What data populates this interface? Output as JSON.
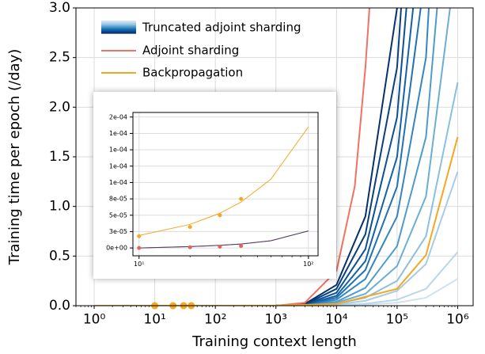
{
  "chart_data": [
    {
      "type": "line",
      "xlabel": "Training context length",
      "ylabel": "Training time per epoch (/day)",
      "xscale": "log",
      "xlim": [
        0.5,
        1800000
      ],
      "ylim": [
        0,
        3
      ],
      "grid": true,
      "legend": "upper left",
      "xticks": [
        {
          "value": 1,
          "label": "10⁰"
        },
        {
          "value": 10,
          "label": "10¹"
        },
        {
          "value": 100,
          "label": "10²"
        },
        {
          "value": 1000,
          "label": "10³"
        },
        {
          "value": 10000,
          "label": "10⁴"
        },
        {
          "value": 100000,
          "label": "10⁵"
        },
        {
          "value": 1000000,
          "label": "10⁶"
        }
      ],
      "yticks": [
        {
          "value": 0,
          "label": "0.0"
        },
        0.5,
        {
          "value": 1,
          "label": "1.0"
        },
        1.5,
        {
          "value": 2,
          "label": "2.0"
        },
        2.5,
        {
          "value": 3,
          "label": "3.0"
        }
      ],
      "truncated": {
        "name": "Truncated adjoint sharding",
        "x": [
          1000,
          3000,
          10000,
          30000,
          100000,
          300000,
          1000000
        ],
        "curves": [
          {
            "color": "#08306b",
            "values": [
              0.0009,
              0.018,
              0.21,
              0.9,
              3,
              8.4,
              27
            ]
          },
          {
            "color": "#08407e",
            "values": [
              0.0007,
              0.014,
              0.17,
              0.72,
              2.4,
              6.7,
              21.6
            ]
          },
          {
            "color": "#0b5094",
            "values": [
              0.0006,
              0.011,
              0.13,
              0.57,
              1.9,
              5.3,
              17.1
            ]
          },
          {
            "color": "#1361a9",
            "values": [
              0.0005,
              0.009,
              0.1,
              0.45,
              1.5,
              4.2,
              13.5
            ]
          },
          {
            "color": "#2171b5",
            "values": [
              0.0004,
              0.007,
              0.08,
              0.36,
              1.2,
              3.4,
              10.8
            ]
          },
          {
            "color": "#3585c0",
            "values": [
              0.0003,
              0.005,
              0.06,
              0.27,
              0.9,
              2.5,
              8.1
            ]
          },
          {
            "color": "#4f9bcb",
            "values": [
              0.0002,
              0.004,
              0.04,
              0.18,
              0.6,
              1.7,
              5.4
            ]
          },
          {
            "color": "#6aaed6",
            "values": [
              0.0001,
              0.002,
              0.03,
              0.12,
              0.4,
              1.1,
              3.6
            ]
          },
          {
            "color": "#8bbfdf",
            "values": [
              0.0001,
              0.0015,
              0.02,
              0.08,
              0.25,
              0.7,
              2.25
            ]
          },
          {
            "color": "#a5cde3",
            "values": [
              5e-05,
              0.001,
              0.01,
              0.05,
              0.15,
              0.42,
              1.35
            ]
          },
          {
            "color": "#bad6eb",
            "values": [
              0,
              0.0004,
              0.004,
              0.02,
              0.06,
              0.17,
              0.54
            ]
          },
          {
            "color": "#cfe1f2",
            "values": [
              0,
              0.0002,
              0.002,
              0.01,
              0.03,
              0.08,
              0.27
            ]
          }
        ]
      },
      "series": [
        {
          "name": "Adjoint sharding",
          "color": "#f07262",
          "x": [
            1,
            10,
            100,
            1000,
            3000,
            10000,
            20000,
            30000,
            35000
          ],
          "values": [
            0,
            0,
            3e-05,
            0.0003,
            0.03,
            0.35,
            1.2,
            2.4,
            3
          ]
        },
        {
          "name": "Backpropagation",
          "color": "#f5a623",
          "x": [
            1,
            10,
            100,
            1000,
            10000,
            100000,
            300000,
            1000000
          ],
          "values": [
            1.7e-06,
            1.7e-05,
            0.00017,
            0.0017,
            0.017,
            0.17,
            0.51,
            1.7
          ]
        }
      ],
      "points": [
        {
          "color": "#f5a623",
          "x": [
            10,
            20,
            30,
            40
          ],
          "values": [
            1.8e-05,
            3.2e-05,
            5e-05,
            7.5e-05
          ]
        }
      ]
    },
    {
      "type": "line",
      "xscale": "log",
      "xlim": [
        9.2,
        114
      ],
      "ylim": [
        -1.2e-05,
        0.000207
      ],
      "grid": true,
      "xticks": [
        {
          "value": 10,
          "label": "10¹"
        },
        {
          "value": 100,
          "label": "10²"
        }
      ],
      "yticks": [
        {
          "value": 0,
          "label": "0e+00"
        },
        {
          "value": 2.5e-05,
          "label": "3e-05"
        },
        {
          "value": 5e-05,
          "label": "5e-05"
        },
        {
          "value": 7.5e-05,
          "label": "8e-05"
        },
        {
          "value": 0.0001,
          "label": "1e-04"
        },
        {
          "value": 0.000125,
          "label": "1e-04"
        },
        {
          "value": 0.00015,
          "label": "1e-04"
        },
        {
          "value": 0.000175,
          "label": "1e-04"
        },
        {
          "value": 0.0002,
          "label": "2e-04"
        }
      ],
      "series": [
        {
          "color": "#f5a623",
          "x": [
            10,
            20,
            30,
            40,
            60,
            100
          ],
          "values": [
            1.9e-05,
            3.6e-05,
            5.3e-05,
            7e-05,
            0.000105,
            0.000185
          ]
        },
        {
          "color": "#f07262",
          "x": [
            10,
            20,
            30,
            40,
            60,
            100
          ],
          "values": [
            0,
            2e-06,
            4e-06,
            6e-06,
            1.1e-05,
            2.6e-05
          ]
        },
        {
          "color": "#4b3a6b",
          "x": [
            10,
            20,
            30,
            40,
            60,
            100
          ],
          "values": [
            0,
            2e-06,
            4e-06,
            6e-06,
            1.1e-05,
            2.6e-05
          ]
        }
      ],
      "points": [
        {
          "color": "#f5a623",
          "x": [
            10,
            20,
            30,
            40
          ],
          "values": [
            1.8e-05,
            3.2e-05,
            5e-05,
            7.5e-05
          ]
        },
        {
          "color": "#e0655a",
          "x": [
            10,
            20,
            30,
            40
          ],
          "values": [
            0,
            1e-06,
            2e-06,
            3e-06
          ]
        }
      ]
    }
  ]
}
